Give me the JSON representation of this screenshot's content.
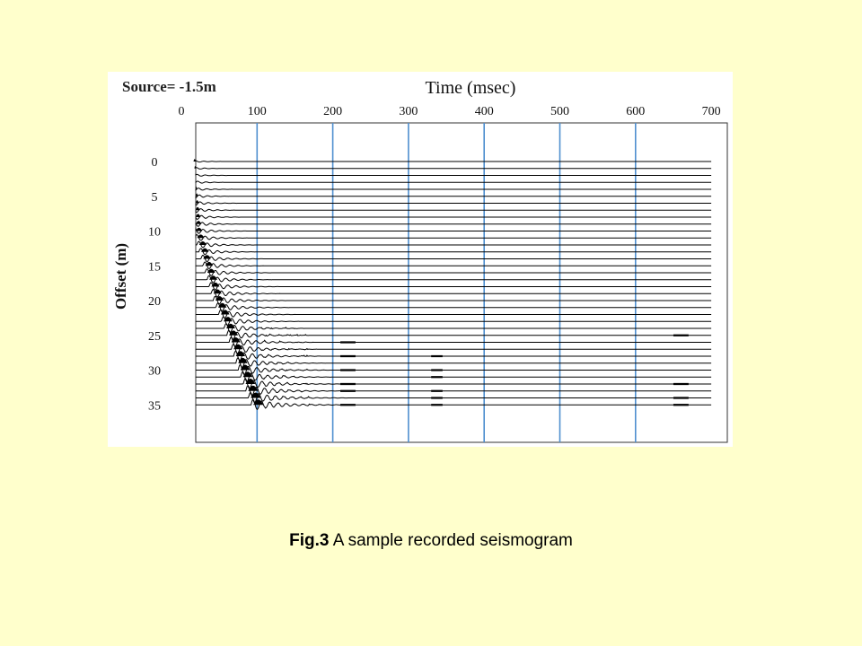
{
  "caption": {
    "fig_label": "Fig.3",
    "text": "A sample recorded seismogram"
  },
  "colors": {
    "background": "#ffffcc",
    "panel": "#ffffff",
    "gridline": "#4f8fcf",
    "trace": "#000000"
  },
  "chart_data": {
    "type": "line",
    "subtype": "seismogram-wiggle-trace",
    "source_label": "Source= -1.5m",
    "xlabel": "Time (msec)",
    "ylabel": "Offset (m)",
    "x_axis_position": "top",
    "xlim": [
      0,
      700
    ],
    "x_ticks": [
      0,
      100,
      200,
      300,
      400,
      500,
      600,
      700
    ],
    "y_ticks": [
      0,
      5,
      10,
      15,
      20,
      25,
      30,
      35
    ],
    "ylim": [
      0,
      35
    ],
    "y_inverted": true,
    "trace_count": 36,
    "trace_spacing_m": 1,
    "vertical_gridlines_msec": [
      100,
      200,
      300,
      400,
      500,
      600
    ],
    "first_arrival": [
      {
        "offset": 0,
        "time_ms": 5
      },
      {
        "offset": 10,
        "time_ms": 15
      },
      {
        "offset": 20,
        "time_ms": 42
      },
      {
        "offset": 25,
        "time_ms": 60
      },
      {
        "offset": 30,
        "time_ms": 75
      },
      {
        "offset": 35,
        "time_ms": 92
      }
    ],
    "grid": true
  }
}
